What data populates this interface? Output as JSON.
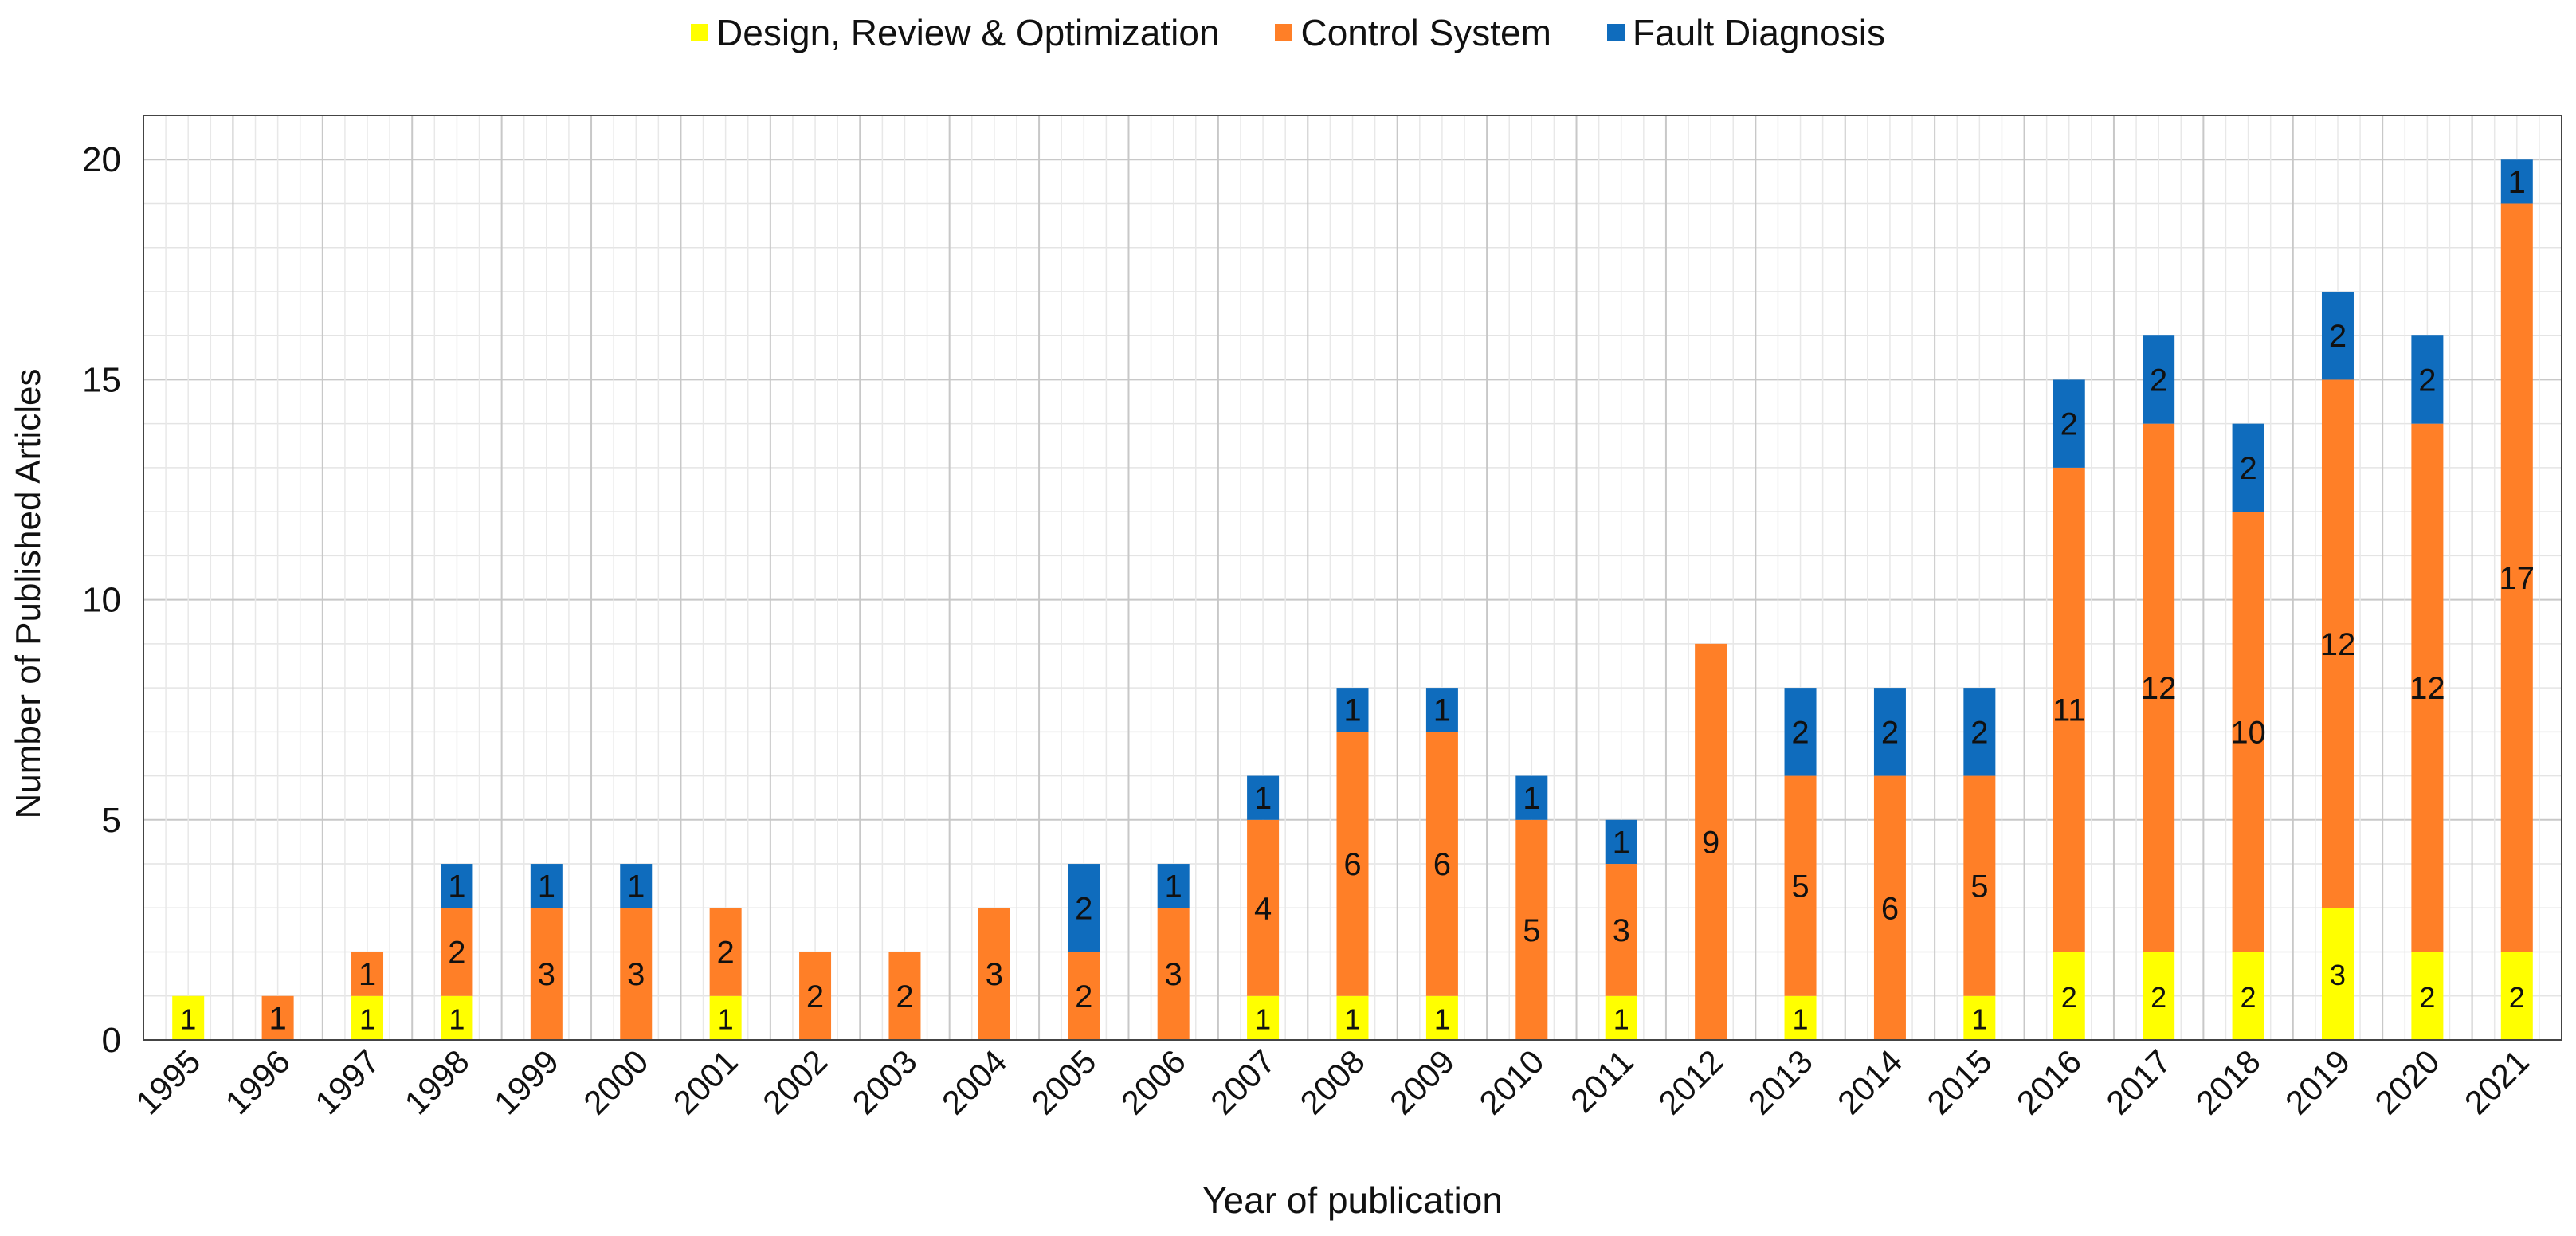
{
  "chart_data": {
    "type": "bar",
    "stacked": true,
    "title": "",
    "xlabel": "Year of publication",
    "ylabel": "Number of Published Articles",
    "ylim": [
      0,
      21
    ],
    "yticks": [
      0,
      5,
      10,
      15,
      20
    ],
    "grid": true,
    "legend_position": "top-center",
    "categories": [
      "1995",
      "1996",
      "1997",
      "1998",
      "1999",
      "2000",
      "2001",
      "2002",
      "2003",
      "2004",
      "2005",
      "2006",
      "2007",
      "2008",
      "2009",
      "2010",
      "2011",
      "2012",
      "2013",
      "2014",
      "2015",
      "2016",
      "2017",
      "2018",
      "2019",
      "2020",
      "2021"
    ],
    "series": [
      {
        "name": "Design, Review & Optimization",
        "color": "#FFFF00",
        "values": [
          1,
          0,
          1,
          1,
          0,
          0,
          1,
          0,
          0,
          0,
          0,
          0,
          1,
          1,
          1,
          0,
          1,
          0,
          1,
          0,
          1,
          2,
          2,
          2,
          3,
          2,
          2
        ]
      },
      {
        "name": "Control System",
        "color": "#FF7F27",
        "values": [
          0,
          1,
          1,
          2,
          3,
          3,
          2,
          2,
          2,
          3,
          2,
          3,
          4,
          6,
          6,
          5,
          3,
          9,
          5,
          6,
          5,
          11,
          12,
          10,
          12,
          12,
          17
        ]
      },
      {
        "name": "Fault Diagnosis",
        "color": "#0F6CBD",
        "values": [
          0,
          0,
          0,
          1,
          1,
          1,
          0,
          0,
          0,
          0,
          2,
          1,
          1,
          1,
          1,
          1,
          1,
          0,
          2,
          2,
          2,
          2,
          2,
          2,
          2,
          2,
          1
        ]
      }
    ]
  }
}
